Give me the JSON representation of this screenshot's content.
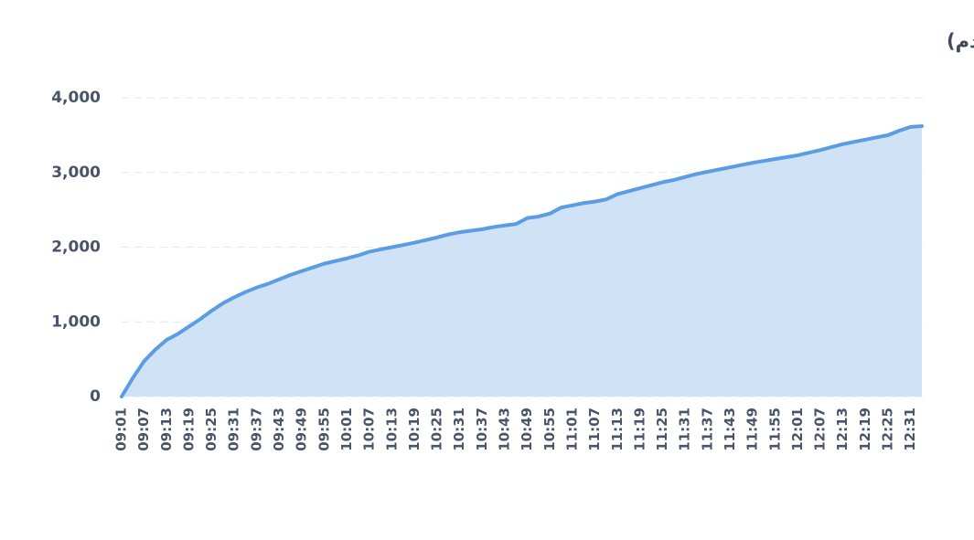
{
  "chart_data": {
    "type": "area",
    "title": "روند ارزش معاملات خرد (سهام و حق تقدم)",
    "categories": [
      "09:01",
      null,
      "09:07",
      null,
      "09:13",
      null,
      "09:19",
      null,
      "09:25",
      null,
      "09:31",
      null,
      "09:37",
      null,
      "09:43",
      null,
      "09:49",
      null,
      "09:55",
      null,
      "10:01",
      null,
      "10:07",
      null,
      "10:13",
      null,
      "10:19",
      null,
      "10:25",
      null,
      "10:31",
      null,
      "10:37",
      null,
      "10:43",
      null,
      "10:49",
      null,
      "10:55",
      null,
      "11:01",
      null,
      "11:07",
      null,
      "11:13",
      null,
      "11:19",
      null,
      "11:25",
      null,
      "11:31",
      null,
      "11:37",
      null,
      "11:43",
      null,
      "11:49",
      null,
      "11:55",
      null,
      "12:01",
      null,
      "12:07",
      null,
      "12:13",
      null,
      "12:19",
      null,
      "12:25",
      null,
      "12:31",
      null
    ],
    "values": [
      0,
      250,
      475,
      630,
      760,
      840,
      940,
      1040,
      1150,
      1250,
      1330,
      1400,
      1460,
      1510,
      1570,
      1630,
      1680,
      1730,
      1780,
      1815,
      1850,
      1890,
      1940,
      1970,
      2000,
      2030,
      2060,
      2095,
      2130,
      2170,
      2200,
      2220,
      2240,
      2270,
      2290,
      2310,
      2390,
      2410,
      2450,
      2530,
      2560,
      2590,
      2610,
      2640,
      2710,
      2750,
      2790,
      2830,
      2870,
      2900,
      2940,
      2980,
      3010,
      3040,
      3070,
      3100,
      3130,
      3155,
      3180,
      3205,
      3230,
      3265,
      3300,
      3340,
      3380,
      3410,
      3440,
      3470,
      3500,
      3560,
      3610,
      3620
    ],
    "color": "#5b9de3",
    "fill_color": "#cfe2f6",
    "ylim": [
      0,
      4000
    ],
    "yticks": [
      0,
      {
        "value": 1000,
        "label": "1,000"
      },
      {
        "value": 2000,
        "label": "2,000"
      },
      {
        "value": 3000,
        "label": "3,000"
      },
      {
        "value": 4000,
        "label": "4,000"
      }
    ],
    "grid": true
  }
}
